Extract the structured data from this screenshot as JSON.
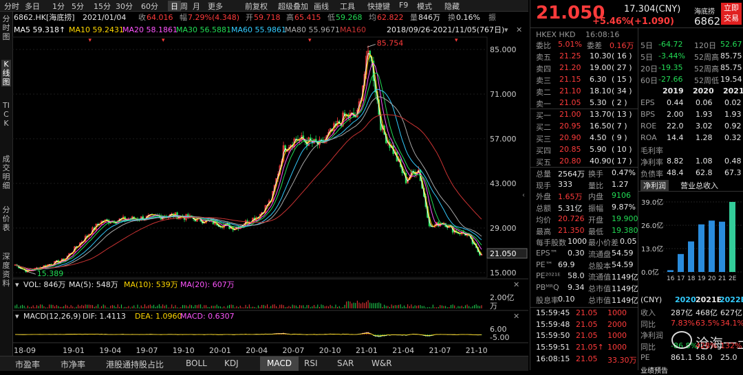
{
  "toolbar": {
    "items": [
      "分时",
      "多日",
      "1分",
      "5分",
      "15分",
      "30分",
      "60分",
      "日",
      "周",
      "月",
      "更多",
      "前复权",
      "超级叠加",
      "画线",
      "工具",
      "快捷键",
      "F9",
      "模式",
      "隐藏"
    ],
    "active_index": 7
  },
  "left_nav": {
    "items": [
      "分时图",
      "K线图",
      "TICK",
      "成交明细",
      "分价表",
      "深度资料"
    ],
    "active_index": 1
  },
  "header": {
    "stock": "6862.HK[海底捞]",
    "date": "2021/01/04",
    "close_label": "收",
    "close": "64.016",
    "change_label": "幅",
    "change": "7.29%(4.348)",
    "open_label": "开",
    "open": "59.718",
    "high_label": "高",
    "high": "65.415",
    "low_label": "低",
    "low": "59.268",
    "avg_label": "均",
    "avg": "62.822",
    "vol_label": "量",
    "vol": "846万",
    "turnover_label": "换",
    "turnover": "0.16%",
    "amp_label": "振"
  },
  "ma_line": [
    {
      "label": "MA5",
      "value": "59.318↑",
      "color": "#ffffff"
    },
    {
      "label": "MA10",
      "value": "59.2431",
      "color": "#ffd800"
    },
    {
      "label": "MA20",
      "value": "58.1861",
      "color": "#ff55ff"
    },
    {
      "label": "MA30",
      "value": "56.5881",
      "color": "#22dd55"
    },
    {
      "label": "MA60",
      "value": "55.9861",
      "color": "#33ccff"
    },
    {
      "label": "MA80",
      "value": "55.9671",
      "color": "#aaaaaa"
    },
    {
      "label": "MA160",
      "value": "",
      "color": "#cc3333"
    }
  ],
  "range_label": "2018/09/26-2021/11/05(767日)",
  "price_axis": [
    "85.000",
    "71.000",
    "57.000",
    "43.000",
    "29.000",
    "15.000"
  ],
  "last_price_tag": "21.050",
  "peak_label": "85.754",
  "low_label_chart": "15.389",
  "vol_panel": {
    "title": "VOL: 846万",
    "ma5": "MA(5): 548万",
    "ma10": "MA(10): 539万",
    "ma20": "MA(20): 607万",
    "axis_top": "2.00亿",
    "axis_unit": "万"
  },
  "macd_panel": {
    "title": "MACD(12,26,9)",
    "dif": "DIF: 1.4113",
    "dea": "DEA: 1.0960",
    "macd": "MACD: 0.6307",
    "axis_top": "6.00",
    "axis_bottom": "-5.00"
  },
  "x_axis": [
    "18-09",
    "19-01",
    "19-04",
    "19-07",
    "19-10",
    "20-01",
    "20-04",
    "20-07",
    "20-10",
    "21-01",
    "21-04",
    "21-07",
    "21-10"
  ],
  "bottom_tabs": {
    "items": [
      "市盈率",
      "市净率",
      "港股通持股占比",
      "BOLL",
      "KDJ",
      "MACD",
      "RSI",
      "SAR",
      "W&R"
    ],
    "active_index": 5
  },
  "chart_data": {
    "type": "candlestick",
    "title": "6862.HK[海底捞]",
    "x_range": [
      "2018/09/26",
      "2021/11/05"
    ],
    "ylim": [
      15,
      85
    ],
    "key_points": [
      {
        "date": "18-09",
        "price": 17.5
      },
      {
        "date": "18-10",
        "price": 15.389
      },
      {
        "date": "19-01",
        "price": 19
      },
      {
        "date": "19-04",
        "price": 31
      },
      {
        "date": "19-07",
        "price": 32
      },
      {
        "date": "19-10",
        "price": 33
      },
      {
        "date": "20-01",
        "price": 31
      },
      {
        "date": "20-03",
        "price": 29
      },
      {
        "date": "20-05",
        "price": 33
      },
      {
        "date": "20-06",
        "price": 38
      },
      {
        "date": "20-07",
        "price": 54
      },
      {
        "date": "20-08",
        "price": 57
      },
      {
        "date": "20-10",
        "price": 55
      },
      {
        "date": "20-12",
        "price": 64
      },
      {
        "date": "21-01",
        "price": 64.016
      },
      {
        "date": "21-02",
        "price": 85.754
      },
      {
        "date": "21-03",
        "price": 60
      },
      {
        "date": "21-04",
        "price": 53
      },
      {
        "date": "21-05",
        "price": 44
      },
      {
        "date": "21-06",
        "price": 48
      },
      {
        "date": "21-07",
        "price": 29
      },
      {
        "date": "21-08",
        "price": 31
      },
      {
        "date": "21-09",
        "price": 28
      },
      {
        "date": "21-10",
        "price": 27
      },
      {
        "date": "21-11",
        "price": 21.05
      }
    ],
    "fundamentals_bars": {
      "categories": [
        "16",
        "17",
        "18",
        "19",
        "20",
        "21",
        "2E"
      ],
      "values": [
        1,
        10,
        17,
        26.5,
        28.6,
        28,
        39
      ],
      "ylim": [
        0,
        39
      ],
      "axis_labels": [
        "39.0亿",
        "26.0亿",
        "13.0亿",
        "0.0亿"
      ]
    }
  },
  "quote": {
    "price": "21.050",
    "change": "+5.46%",
    "change_abs": "(+1.090)",
    "cny": "17.304(CNY)",
    "name": "海底捞",
    "code": "6862",
    "button": "立即交易",
    "exchange": "HKEX  HKD",
    "time": "16:08:16"
  },
  "order_book": {
    "weibi_label": "委比",
    "weibi": "5.01%",
    "weicha_label": "委差",
    "weicha": "0.16万",
    "asks": [
      {
        "label": "卖五",
        "price": "21.25",
        "vol": "10.30",
        "count": "(  16 )"
      },
      {
        "label": "卖四",
        "price": "21.20",
        "vol": "19.00",
        "count": "(  27 )"
      },
      {
        "label": "卖三",
        "price": "21.15",
        "vol": "6.30",
        "count": "(  15 )"
      },
      {
        "label": "卖二",
        "price": "21.10",
        "vol": "18.10",
        "count": "(  34 )"
      },
      {
        "label": "卖一",
        "price": "21.05",
        "vol": "5.30",
        "count": "(  2 )"
      }
    ],
    "bids": [
      {
        "label": "买一",
        "price": "21.00",
        "vol": "13.70",
        "count": "(  13 )"
      },
      {
        "label": "买二",
        "price": "20.95",
        "vol": "16.50",
        "count": "(  7 )"
      },
      {
        "label": "买三",
        "price": "20.90",
        "vol": "4.50",
        "count": "(  9 )"
      },
      {
        "label": "买四",
        "price": "20.85",
        "vol": "5.90",
        "count": "(  10 )"
      },
      {
        "label": "买五",
        "price": "20.80",
        "vol": "40.90",
        "count": "(  17 )"
      }
    ]
  },
  "stats": [
    [
      {
        "l": "总量",
        "v": "2564万",
        "c": "white"
      },
      {
        "l": "换手",
        "v": "0.47%",
        "c": "white"
      }
    ],
    [
      {
        "l": "现手",
        "v": "333",
        "c": "white"
      },
      {
        "l": "量比",
        "v": "1.27",
        "c": "white"
      }
    ],
    [
      {
        "l": "外盘",
        "v": "1.65万",
        "c": "red"
      },
      {
        "l": "内盘",
        "v": "9106",
        "c": "green"
      }
    ],
    [
      {
        "l": "总额",
        "v": "5.31亿",
        "c": "white"
      },
      {
        "l": "振幅",
        "v": "9.87%",
        "c": "white"
      }
    ],
    [
      {
        "l": "均价",
        "v": "20.726",
        "c": "red"
      },
      {
        "l": "开盘",
        "v": "19.900",
        "c": "green"
      }
    ],
    [
      {
        "l": "最高",
        "v": "21.350",
        "c": "red"
      },
      {
        "l": "最低",
        "v": "19.380",
        "c": "green"
      }
    ],
    [
      {
        "l": "每手股数",
        "v": "1000",
        "c": "white"
      },
      {
        "l": "最小价差",
        "v": "0.05",
        "c": "white"
      }
    ],
    [
      {
        "l": "EPS™",
        "v": "0.30",
        "c": "white"
      },
      {
        "l": "流通盘",
        "v": "54.59",
        "c": "white"
      }
    ],
    [
      {
        "l": "PE™",
        "v": "69.9",
        "c": "white"
      },
      {
        "l": "总股本",
        "v": "54.59",
        "c": "white"
      }
    ],
    [
      {
        "l": "PE²⁰²¹ᴱ",
        "v": "58.0",
        "c": "white"
      },
      {
        "l": "流通值",
        "v": "1149亿",
        "c": "white"
      }
    ],
    [
      {
        "l": "PBᴹᴿQ",
        "v": "9.34",
        "c": "white"
      },
      {
        "l": "总市值",
        "v": "1149亿",
        "c": "white"
      }
    ],
    [
      {
        "l": "股息率",
        "v": "0.10",
        "c": "white"
      },
      {
        "l": "总市值",
        "v": "1149亿",
        "c": "white"
      }
    ]
  ],
  "perf": {
    "rows": [
      [
        {
          "l": "5日",
          "v": "-64.72",
          "c": "green"
        },
        {
          "l": "120日",
          "v": "52.67",
          "c": "green"
        }
      ],
      [
        {
          "l": "5日",
          "v": "-3.44%",
          "c": "green"
        },
        {
          "l": "52周高",
          "v": "85.75",
          "c": "white"
        }
      ],
      [
        {
          "l": "20日",
          "v": "-19.35",
          "c": "green"
        },
        {
          "l": "52周高",
          "v": "85.75",
          "c": "white"
        }
      ],
      [
        {
          "l": "60日",
          "v": "-27.66",
          "c": "green"
        },
        {
          "l": "52周低",
          "v": "19.54",
          "c": "white"
        }
      ]
    ]
  },
  "fund_table": {
    "years": [
      "2019",
      "2020",
      "2021"
    ],
    "rows": [
      {
        "l": "EPS",
        "v": [
          "0.44",
          "0.06",
          "0.02"
        ]
      },
      {
        "l": "BPS",
        "v": [
          "2.00",
          "1.93",
          "1.93"
        ]
      },
      {
        "l": "ROE",
        "v": [
          "22.0",
          "3.02",
          "0.92"
        ]
      },
      {
        "l": "ROA",
        "v": [
          "14.4",
          "1.28",
          "0.32"
        ]
      },
      {
        "l": "毛利率",
        "v": [
          "",
          "",
          ""
        ]
      },
      {
        "l": "净利率",
        "v": [
          "8.82",
          "1.08",
          "0.48"
        ]
      },
      {
        "l": "负债率",
        "v": [
          "48.4",
          "62.8",
          "67.3"
        ]
      }
    ]
  },
  "fund_tabs": [
    "净利润",
    "营业总收入"
  ],
  "forecast": {
    "header": {
      "cur": "(CNY)",
      "y1": "2020",
      "y2": "2021E",
      "y3": "2022E"
    },
    "rows": [
      {
        "l": "收入",
        "v": [
          "287亿",
          "468亿",
          "627亿"
        ],
        "c": [
          "white",
          "white",
          "white"
        ]
      },
      {
        "l": "同比",
        "v": [
          "7.83%",
          "63.5%",
          "34.1%"
        ],
        "c": [
          "red",
          "red",
          "red"
        ]
      },
      {
        "l": "净利润",
        "v": [
          "",
          "",
          ""
        ],
        "c": [
          "white",
          "white",
          "white"
        ]
      },
      {
        "l": "同比",
        "v": [
          "-86.8%",
          "428%",
          "132%"
        ],
        "c": [
          "green",
          "red",
          "red"
        ]
      },
      {
        "l": "PE",
        "v": [
          "861.1",
          "58.0",
          "25.0"
        ],
        "c": [
          "white",
          "white",
          "white"
        ]
      }
    ],
    "footer": "业绩预告"
  },
  "ticks": [
    {
      "t": "15:59:45",
      "p": "21.05",
      "v": "1000"
    },
    {
      "t": "15:59:48",
      "p": "21.05",
      "v": "2000"
    },
    {
      "t": "15:59:50",
      "p": "21.05",
      "v": "1000"
    },
    {
      "t": "15:59:51",
      "p": "21.05↑",
      "v": "1000"
    },
    {
      "t": "16:08:15",
      "p": "21.05",
      "v": "33.30万"
    }
  ],
  "watermark": "沧海一土狗"
}
